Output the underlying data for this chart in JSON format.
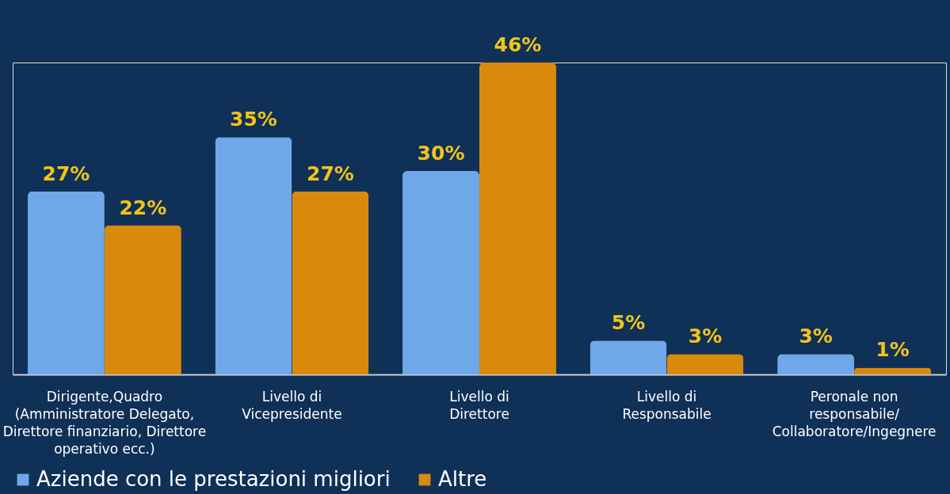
{
  "chart_data": {
    "type": "bar",
    "categories": [
      "Dirigente,Quadro\n(Amministratore Delegato,\nDirettore finanziario, Direttore\noperativo ecc.)",
      "Livello di\nVicepresidente",
      "Livello di\nDirettore",
      "Livello di\nResponsabile",
      "Peronale non\nresponsabile/\nCollaboratore/Ingegnere"
    ],
    "series": [
      {
        "name": "Aziende con le prestazioni migliori",
        "color": "#6fa8e8",
        "values": [
          27,
          35,
          30,
          5,
          3
        ],
        "value_labels": [
          "27%",
          "35%",
          "30%",
          "5%",
          "3%"
        ]
      },
      {
        "name": "Altre",
        "color": "#d98a0a",
        "values": [
          22,
          27,
          46,
          3,
          1
        ],
        "value_labels": [
          "22%",
          "27%",
          "46%",
          "3%",
          "1%"
        ]
      }
    ],
    "legend": "bottom",
    "grid": false
  }
}
